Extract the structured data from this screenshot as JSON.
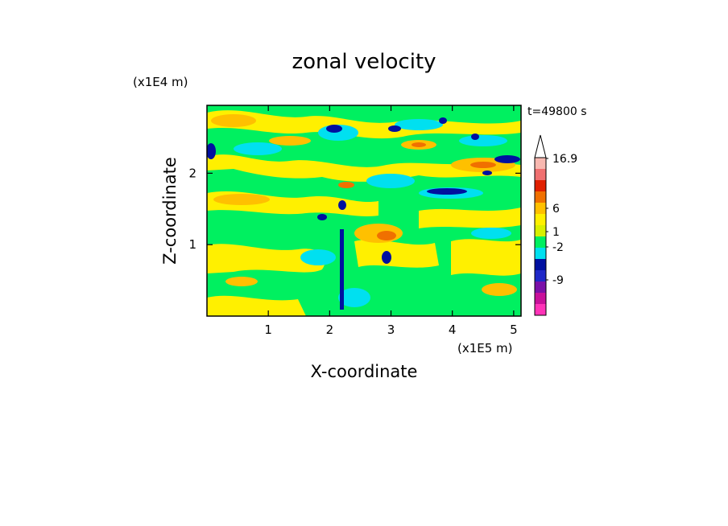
{
  "title": "zonal velocity",
  "time_label": "t=49800 s",
  "x_axis": {
    "label": "X-coordinate",
    "scale_label": "(x1E5 m)"
  },
  "y_axis": {
    "label": "Z-coordinate",
    "scale_label": "(x1E4 m)"
  },
  "chart_data": {
    "type": "heatmap",
    "title": "zonal velocity",
    "xlabel": "X-coordinate",
    "ylabel": "Z-coordinate",
    "x_unit": "x1E5 m",
    "y_unit": "x1E4 m",
    "xlim": [
      0,
      5.12
    ],
    "ylim": [
      0,
      2.95
    ],
    "x_ticks": [
      1,
      2,
      3,
      4,
      5
    ],
    "y_ticks": [
      1,
      2
    ],
    "time": "t=49800 s",
    "colorbar": {
      "tick_labels": [
        "16.9",
        "6",
        "1",
        "-2",
        "-9"
      ],
      "extend": "max",
      "levels": [
        {
          "color": "#ff33b8"
        },
        {
          "color": "#c8109a"
        },
        {
          "color": "#7a10a8"
        },
        {
          "color": "#1f28c8"
        },
        {
          "color": "#0010a0"
        },
        {
          "color": "#00e0f0"
        },
        {
          "color": "#00f060"
        },
        {
          "color": "#d8f000"
        },
        {
          "color": "#fff000"
        },
        {
          "color": "#ffc000"
        },
        {
          "color": "#f07000"
        },
        {
          "color": "#e02000"
        },
        {
          "color": "#f07070"
        },
        {
          "color": "#f8b8b0"
        }
      ]
    }
  }
}
